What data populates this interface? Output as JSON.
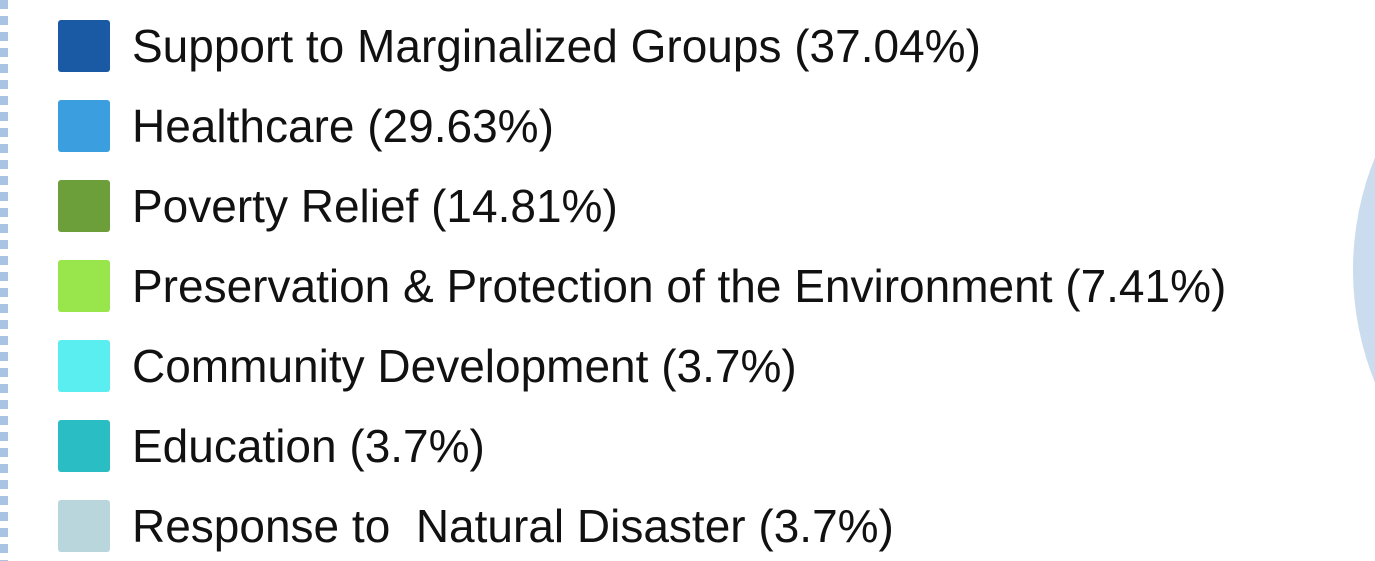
{
  "legend": [
    {
      "label": "Support to Marginalized Groups (37.04%)",
      "color": "#1a5aa5"
    },
    {
      "label": "Healthcare (29.63%)",
      "color": "#3a9edf"
    },
    {
      "label": "Poverty Relief (14.81%)",
      "color": "#6c9e3a"
    },
    {
      "label": "Preservation & Protection of the Environment (7.41%)",
      "color": "#98e64b"
    },
    {
      "label": "Community Development (3.7%)",
      "color": "#5aeef1"
    },
    {
      "label": "Education (3.7%)",
      "color": "#2bbdc4"
    },
    {
      "label": "Response to  Natural Disaster (3.7%)",
      "color": "#b8d6dc"
    }
  ]
}
